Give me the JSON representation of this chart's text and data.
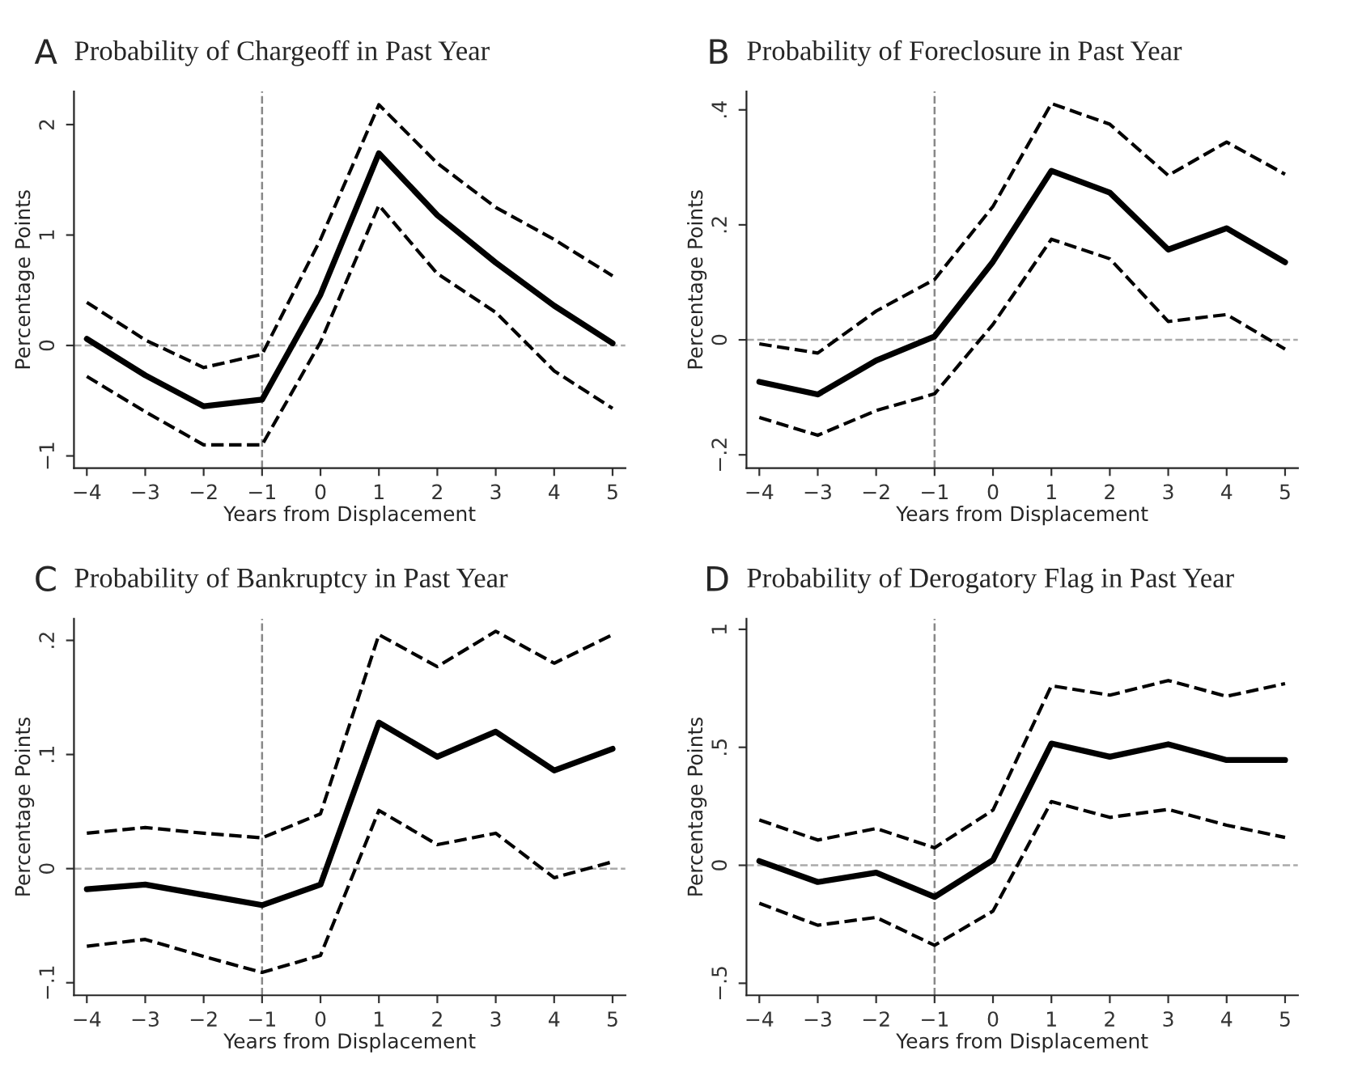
{
  "chart_data": [
    {
      "type": "line",
      "title": "Probability of Chargeoff in Past Year",
      "annotations": [
        "A"
      ],
      "xlabel": "Years from Displacement",
      "ylabel": "Percentage Points",
      "x": [
        -4,
        -3,
        -2,
        -1,
        0,
        1,
        2,
        3,
        4,
        5
      ],
      "xlim": [
        -4.22,
        5.22
      ],
      "xticks": [
        {
          "value": -4,
          "label": "−4"
        },
        {
          "value": -3,
          "label": "−3"
        },
        {
          "value": -2,
          "label": "−2"
        },
        {
          "value": -1,
          "label": "−1"
        },
        0,
        1,
        2,
        3,
        4,
        5
      ],
      "ylim": [
        -1.11,
        2.3
      ],
      "yticks": [
        {
          "value": -1,
          "label": "−1"
        },
        0,
        1,
        2
      ],
      "ref_lines": [
        {
          "axis": "x",
          "value": -1,
          "color": "#888888",
          "line_style": "dashed"
        },
        {
          "axis": "y",
          "value": 0,
          "color": "#aaaaaa",
          "line_style": "dashed"
        }
      ],
      "grid": false,
      "marker": "none",
      "series": [
        {
          "color": "#000000",
          "line_style": "solid",
          "values": [
            0.06,
            -0.27,
            -0.55,
            -0.49,
            0.46,
            1.74,
            1.18,
            0.75,
            0.36,
            0.02
          ]
        },
        {
          "color": "#000000",
          "line_style": "dashed",
          "values": [
            0.39,
            0.05,
            -0.2,
            -0.08,
            0.96,
            2.18,
            1.65,
            1.25,
            0.96,
            0.63
          ]
        },
        {
          "color": "#000000",
          "line_style": "dashed",
          "values": [
            -0.28,
            -0.6,
            -0.9,
            -0.9,
            0.03,
            1.27,
            0.65,
            0.3,
            -0.23,
            -0.57
          ]
        }
      ]
    },
    {
      "type": "line",
      "title": "Probability of Foreclosure in Past Year",
      "annotations": [
        "B"
      ],
      "xlabel": "Years from Displacement",
      "ylabel": "Percentage Points",
      "x": [
        -4,
        -3,
        -2,
        -1,
        0,
        1,
        2,
        3,
        4,
        5
      ],
      "xlim": [
        -4.22,
        5.22
      ],
      "xticks": [
        {
          "value": -4,
          "label": "−4"
        },
        {
          "value": -3,
          "label": "−3"
        },
        {
          "value": -2,
          "label": "−2"
        },
        {
          "value": -1,
          "label": "−1"
        },
        0,
        1,
        2,
        3,
        4,
        5
      ],
      "ylim": [
        -0.223,
        0.432
      ],
      "yticks": [
        {
          "value": -0.2,
          "label": "−.2"
        },
        0,
        {
          "value": 0.2,
          "label": ".2"
        },
        {
          "value": 0.4,
          "label": ".4"
        }
      ],
      "ref_lines": [
        {
          "axis": "x",
          "value": -1,
          "color": "#888888",
          "line_style": "dashed"
        },
        {
          "axis": "y",
          "value": 0,
          "color": "#aaaaaa",
          "line_style": "dashed"
        }
      ],
      "grid": false,
      "marker": "none",
      "series": [
        {
          "color": "#000000",
          "line_style": "solid",
          "values": [
            -0.073,
            -0.095,
            -0.036,
            0.006,
            0.136,
            0.294,
            0.256,
            0.157,
            0.194,
            0.135
          ]
        },
        {
          "color": "#000000",
          "line_style": "dashed",
          "values": [
            -0.007,
            -0.023,
            0.05,
            0.105,
            0.232,
            0.411,
            0.375,
            0.286,
            0.344,
            0.288
          ]
        },
        {
          "color": "#000000",
          "line_style": "dashed",
          "values": [
            -0.135,
            -0.166,
            -0.123,
            -0.094,
            0.027,
            0.175,
            0.141,
            0.032,
            0.044,
            -0.016
          ]
        }
      ]
    },
    {
      "type": "line",
      "title": "Probability of Bankruptcy in Past Year",
      "annotations": [
        "C"
      ],
      "xlabel": "Years from Displacement",
      "ylabel": "Percentage Points",
      "x": [
        -4,
        -3,
        -2,
        -1,
        0,
        1,
        2,
        3,
        4,
        5
      ],
      "xlim": [
        -4.22,
        5.22
      ],
      "xticks": [
        {
          "value": -4,
          "label": "−4"
        },
        {
          "value": -3,
          "label": "−3"
        },
        {
          "value": -2,
          "label": "−2"
        },
        {
          "value": -1,
          "label": "−1"
        },
        0,
        1,
        2,
        3,
        4,
        5
      ],
      "ylim": [
        -0.111,
        0.219
      ],
      "yticks": [
        {
          "value": -0.1,
          "label": "−.1"
        },
        0,
        {
          "value": 0.1,
          "label": ".1"
        },
        {
          "value": 0.2,
          "label": ".2"
        }
      ],
      "ref_lines": [
        {
          "axis": "x",
          "value": -1,
          "color": "#888888",
          "line_style": "dashed"
        },
        {
          "axis": "y",
          "value": 0,
          "color": "#aaaaaa",
          "line_style": "dashed"
        }
      ],
      "grid": false,
      "marker": "none",
      "series": [
        {
          "color": "#000000",
          "line_style": "solid",
          "values": [
            -0.018,
            -0.014,
            -0.023,
            -0.032,
            -0.014,
            0.128,
            0.098,
            0.12,
            0.086,
            0.105
          ]
        },
        {
          "color": "#000000",
          "line_style": "dashed",
          "values": [
            0.031,
            0.036,
            0.031,
            0.027,
            0.048,
            0.205,
            0.177,
            0.208,
            0.18,
            0.205
          ]
        },
        {
          "color": "#000000",
          "line_style": "dashed",
          "values": [
            -0.068,
            -0.062,
            -0.077,
            -0.091,
            -0.076,
            0.051,
            0.021,
            0.031,
            -0.008,
            0.006
          ]
        }
      ]
    },
    {
      "type": "line",
      "title": "Probability of Derogatory Flag in Past Year",
      "annotations": [
        "D"
      ],
      "xlabel": "Years from Displacement",
      "ylabel": "Percentage Points",
      "x": [
        -4,
        -3,
        -2,
        -1,
        0,
        1,
        2,
        3,
        4,
        5
      ],
      "xlim": [
        -4.22,
        5.22
      ],
      "xticks": [
        {
          "value": -4,
          "label": "−4"
        },
        {
          "value": -3,
          "label": "−3"
        },
        {
          "value": -2,
          "label": "−2"
        },
        {
          "value": -1,
          "label": "−1"
        },
        0,
        1,
        2,
        3,
        4,
        5
      ],
      "ylim": [
        -0.551,
        1.045
      ],
      "yticks": [
        {
          "value": -0.5,
          "label": "−.5"
        },
        0,
        {
          "value": 0.5,
          "label": ".5"
        },
        1
      ],
      "ref_lines": [
        {
          "axis": "x",
          "value": -1,
          "color": "#888888",
          "line_style": "dashed"
        },
        {
          "axis": "y",
          "value": 0,
          "color": "#aaaaaa",
          "line_style": "dashed"
        }
      ],
      "grid": false,
      "marker": "none",
      "series": [
        {
          "color": "#000000",
          "line_style": "solid",
          "values": [
            0.018,
            -0.071,
            -0.031,
            -0.134,
            0.022,
            0.516,
            0.46,
            0.513,
            0.446,
            0.446
          ]
        },
        {
          "color": "#000000",
          "line_style": "dashed",
          "values": [
            0.192,
            0.107,
            0.156,
            0.074,
            0.234,
            0.761,
            0.721,
            0.783,
            0.716,
            0.77
          ]
        },
        {
          "color": "#000000",
          "line_style": "dashed",
          "values": [
            -0.161,
            -0.254,
            -0.221,
            -0.339,
            -0.194,
            0.27,
            0.203,
            0.237,
            0.17,
            0.118
          ]
        }
      ]
    }
  ]
}
